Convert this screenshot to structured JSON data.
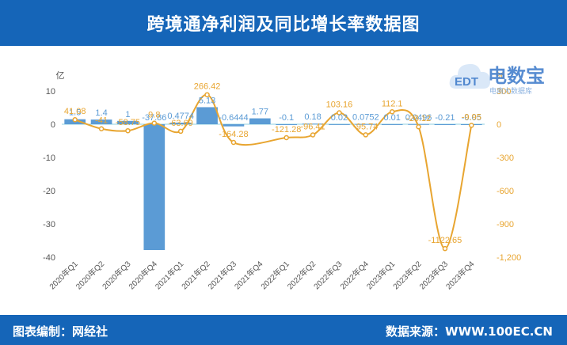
{
  "header": {
    "title": "跨境通净利润及同比增长率数据图"
  },
  "footer": {
    "source_left": "图表编制：网经社",
    "source_right": "数据来源：WWW.100EC.CN"
  },
  "logo": {
    "brand": "电数宝",
    "sub": "电商大数据库",
    "mark": "EDT"
  },
  "colors": {
    "bar": "#5b9bd5",
    "line": "#e8a530",
    "bar_label": "#5b9bd5",
    "line_label": "#e8a530",
    "header": "#1565b8"
  },
  "chart_data": {
    "type": "bar",
    "categories": [
      "2020年Q1",
      "2020年Q2",
      "2020年Q3",
      "2020年Q4",
      "2021年Q1",
      "2021年Q2",
      "2021年Q3",
      "2021年Q4",
      "2022年Q1",
      "2022年Q2",
      "2022年Q3",
      "2022年Q4",
      "2023年Q1",
      "2023年Q2",
      "2023年Q3",
      "2023年Q4"
    ],
    "series": [
      {
        "type": "bar",
        "axis": "left",
        "values": [
          1.5,
          1.4,
          1,
          -37.86,
          0.4774,
          5.13,
          -0.6444,
          1.77,
          -0.1,
          0.18,
          0.02,
          0.0752,
          0.01,
          0.0496,
          -0.21,
          -0.05
        ],
        "labels": [
          "1.5",
          "1.4",
          "1",
          "-37.86",
          "0.4774",
          "5.13",
          "-0.6444",
          "1.77",
          "-0.1",
          "0.18",
          "0.02",
          "0.0752",
          "0.01",
          "0.0496",
          "-0.21",
          "-0.05"
        ]
      },
      {
        "type": "line",
        "axis": "right",
        "values": [
          41.08,
          -41,
          -58.75,
          9.8,
          -63.69,
          266.42,
          -164.28,
          null,
          -121.28,
          -96.41,
          103.16,
          -95.74,
          112.1,
          -23.12,
          -1122.65,
          -9.95
        ],
        "labels": [
          "41.08",
          "-41",
          "-58.75",
          "9.8",
          "-63.69",
          "266.42",
          "-164.28",
          "",
          "-121.28",
          "-96.41",
          "103.16",
          "-95.74",
          "112.1",
          "-23.12",
          "-1122.65",
          "-9.95"
        ]
      }
    ],
    "left_axis": {
      "unit": "亿",
      "ticks": [
        10,
        0,
        -10,
        -20,
        -30,
        -40
      ],
      "tick_labels": [
        "10",
        "0",
        "-10",
        "-20",
        "-30",
        "-40"
      ],
      "ylim": [
        -40,
        10
      ]
    },
    "right_axis": {
      "unit": "%",
      "ticks": [
        300,
        0,
        -300,
        -600,
        -900,
        -1200
      ],
      "tick_labels": [
        "300",
        "0",
        "-300",
        "-600",
        "-900",
        "-1,200"
      ],
      "ylim": [
        -1200,
        300
      ]
    }
  }
}
